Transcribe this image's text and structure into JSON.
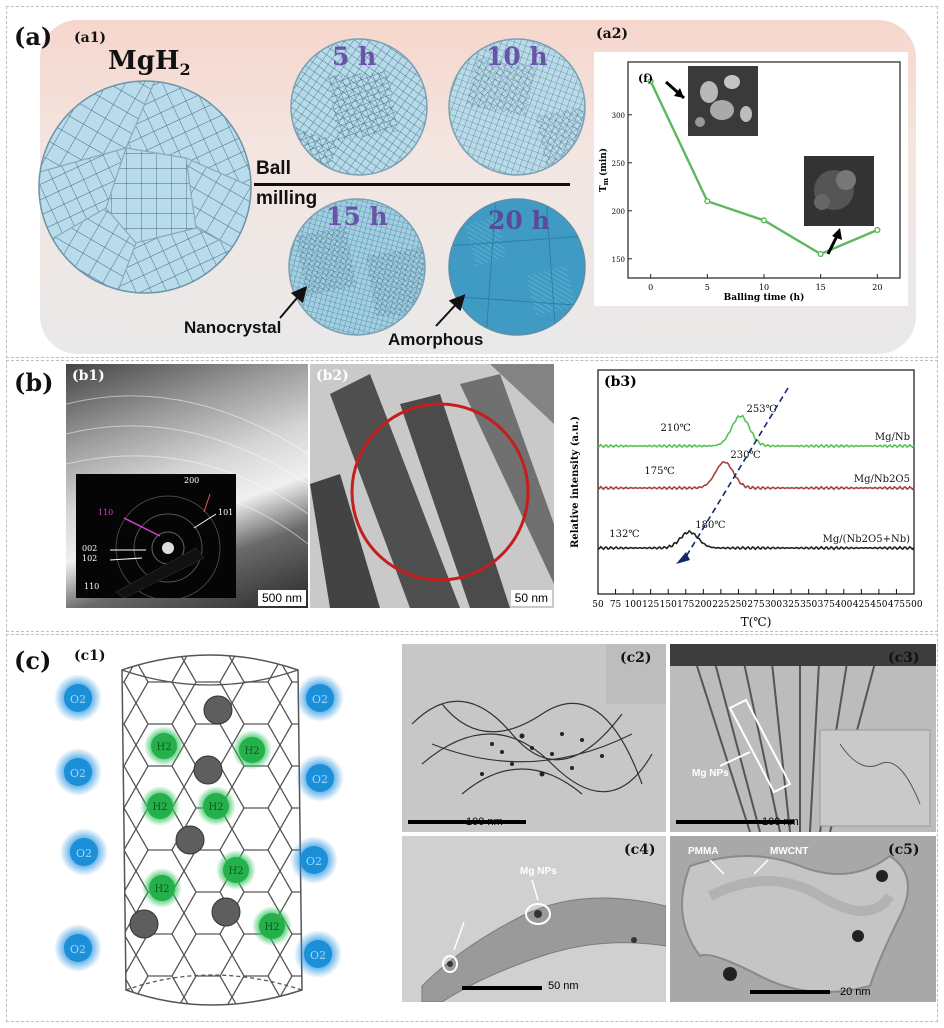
{
  "panel_a": {
    "label": "(a)",
    "a1_label": "(a1)",
    "a2_label": "(a2)",
    "mgh2": "MgH",
    "mgh2_sub": "2",
    "ball": "Ball",
    "milling": "milling",
    "t5": "5 h",
    "t10": "10 h",
    "t15": "15 h",
    "t20": "20 h",
    "nanocrystal": "Nanocrystal",
    "amorphous": "Amorphous",
    "chart_tag": "(f)",
    "chart_xlabel": "Balling time (h)",
    "chart_ylabel": "T",
    "chart_ylabel_sub": "m",
    "chart_ylabel_unit": "(min)"
  },
  "panel_b": {
    "label": "(b)",
    "b1_label": "(b1)",
    "b2_label": "(b2)",
    "b3_label": "(b3)",
    "b1_scale": "500 nm",
    "b2_scale": "50 nm",
    "saed": [
      "200",
      "110",
      "101",
      "002",
      "102",
      "110"
    ],
    "xlabel": "T(℃)",
    "ylabel": "Relative intensity (a.u.)"
  },
  "panel_c": {
    "label": "(c)",
    "c1_label": "(c1)",
    "c2_label": "(c2)",
    "c3_label": "(c3)",
    "c4_label": "(c4)",
    "c5_label": "(c5)",
    "c2_scale": "100 nm",
    "c3_scale": "100 nm",
    "c4_scale": "50 nm",
    "c5_scale": "20 nm",
    "mg_nps_c3": "Mg NPs",
    "mg_nps_c4": "Mg NPs",
    "pmma": "PMMA",
    "mwcnt": "MWCNT",
    "o2": "O2",
    "h2": "H2"
  },
  "chart_data": [
    {
      "type": "line",
      "panel": "(a2)",
      "x": [
        0,
        5,
        10,
        15,
        20
      ],
      "series": [
        {
          "values": [
            335,
            210,
            190,
            155,
            180
          ]
        }
      ],
      "xticks": [
        "0",
        "5",
        "10",
        "15",
        "20"
      ],
      "yticks": [
        "150",
        "200",
        "250",
        "300"
      ],
      "xlabel": "Balling time (h)",
      "ylabel": "Tm (min)",
      "xlim": [
        -2,
        22
      ],
      "ylim": [
        130,
        355
      ],
      "color": "#5cb85c"
    },
    {
      "type": "line",
      "panel": "(b3)",
      "xlabel": "T(℃)",
      "ylabel": "Relative intensity (a.u.)",
      "xticks": [
        "50",
        "75",
        "100",
        "125",
        "150",
        "175",
        "200",
        "225",
        "250",
        "275",
        "300",
        "325",
        "350",
        "375",
        "400",
        "425",
        "450",
        "475",
        "500"
      ],
      "xlim": [
        50,
        500
      ],
      "series": [
        {
          "name": "Mg/Nb",
          "color": "#55c255",
          "offset": 3,
          "onset": "210℃",
          "peak": "253℃",
          "peak_x": 253
        },
        {
          "name": "Mg/Nb2O5",
          "color": "#a64242",
          "offset": 2,
          "onset": "175℃",
          "peak": "230℃",
          "peak_x": 230
        },
        {
          "name": "Mg/(Nb2O5+Nb)",
          "color": "#222222",
          "offset": 1,
          "onset": "132℃",
          "peak": "180℃",
          "peak_x": 180
        }
      ]
    }
  ]
}
